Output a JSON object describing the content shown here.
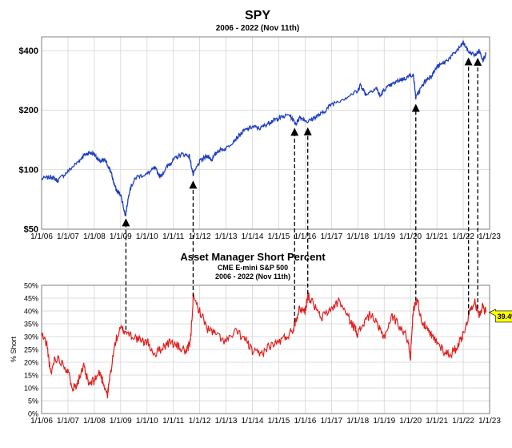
{
  "chart_data": [
    {
      "type": "line",
      "title": "SPY",
      "subtitle": "2006 - 2022 (Nov 11th)",
      "y_scale": "log",
      "ylim": [
        50,
        470
      ],
      "y_ticks": [
        50,
        100,
        200,
        400
      ],
      "y_tick_labels": [
        "$50",
        "$100",
        "$200",
        "$400"
      ],
      "x_tick_labels": [
        "1/1/06",
        "1/1/07",
        "1/1/08",
        "1/1/09",
        "1/1/10",
        "1/1/11",
        "1/1/12",
        "1/1/13",
        "1/1/14",
        "1/1/15",
        "1/1/16",
        "1/1/17",
        "1/1/18",
        "1/1/19",
        "1/1/20",
        "1/1/21",
        "1/1/22",
        "1/1/23"
      ],
      "xlim": [
        2006.0,
        2023.0
      ],
      "grid": true,
      "color": "#1f3fbf",
      "series": [
        {
          "x": [
            2006.0,
            2006.4,
            2006.6,
            2007.0,
            2007.4,
            2007.6,
            2007.8,
            2008.0,
            2008.2,
            2008.4,
            2008.6,
            2008.75,
            2008.85,
            2009.0,
            2009.18,
            2009.35,
            2009.6,
            2010.0,
            2010.3,
            2010.5,
            2010.8,
            2011.0,
            2011.3,
            2011.6,
            2011.75,
            2012.0,
            2012.3,
            2012.45,
            2012.7,
            2013.0,
            2013.4,
            2013.7,
            2014.0,
            2014.3,
            2014.6,
            2014.8,
            2015.0,
            2015.4,
            2015.65,
            2015.8,
            2016.1,
            2016.4,
            2016.7,
            2017.0,
            2017.5,
            2018.0,
            2018.1,
            2018.3,
            2018.7,
            2018.85,
            2019.0,
            2019.3,
            2019.6,
            2019.8,
            2020.1,
            2020.2,
            2020.4,
            2020.6,
            2020.8,
            2021.0,
            2021.3,
            2021.6,
            2021.9,
            2022.0,
            2022.2,
            2022.45,
            2022.6,
            2022.75,
            2022.86
          ],
          "y": [
            90,
            92,
            88,
            98,
            110,
            118,
            122,
            120,
            110,
            112,
            100,
            85,
            78,
            75,
            58,
            80,
            92,
            95,
            102,
            92,
            105,
            112,
            120,
            118,
            94,
            110,
            118,
            112,
            125,
            128,
            145,
            158,
            165,
            162,
            172,
            178,
            182,
            190,
            170,
            185,
            175,
            185,
            195,
            215,
            230,
            250,
            270,
            240,
            260,
            235,
            255,
            270,
            285,
            290,
            305,
            230,
            260,
            285,
            300,
            330,
            350,
            380,
            420,
            440,
            395,
            380,
            400,
            360,
            385
          ]
        }
      ]
    },
    {
      "type": "line",
      "title": "Asset Manager Short Percent",
      "subtitle_lines": [
        "CME E-mini S&P 500",
        "2006 - 2022 (Nov 11th)"
      ],
      "ylabel": "% Short",
      "ylim": [
        0,
        50
      ],
      "y_ticks": [
        0,
        5,
        10,
        15,
        20,
        25,
        30,
        35,
        40,
        45,
        50
      ],
      "y_tick_labels": [
        "0%",
        "5%",
        "10%",
        "15%",
        "20%",
        "25%",
        "30%",
        "35%",
        "40%",
        "45%",
        "50%"
      ],
      "x_tick_labels": [
        "1/1/06",
        "1/1/07",
        "1/1/08",
        "1/1/09",
        "1/1/10",
        "1/1/11",
        "1/1/12",
        "1/1/13",
        "1/1/14",
        "1/1/15",
        "1/1/16",
        "1/1/17",
        "1/1/18",
        "1/1/19",
        "1/1/20",
        "1/1/21",
        "1/1/22",
        "1/1/23"
      ],
      "xlim": [
        2006.0,
        2023.0
      ],
      "grid": true,
      "color": "#e02020",
      "annotation": {
        "label": "39.4%",
        "value": 39.4,
        "x": 2022.86,
        "bg": "#ffff00"
      },
      "series": [
        {
          "x": [
            2006.0,
            2006.2,
            2006.35,
            2006.5,
            2006.8,
            2007.0,
            2007.2,
            2007.35,
            2007.6,
            2007.8,
            2008.0,
            2008.2,
            2008.35,
            2008.5,
            2008.6,
            2008.8,
            2009.0,
            2009.2,
            2009.5,
            2009.8,
            2010.0,
            2010.3,
            2010.6,
            2010.9,
            2011.2,
            2011.5,
            2011.65,
            2011.75,
            2012.0,
            2012.3,
            2012.6,
            2013.0,
            2013.4,
            2013.8,
            2014.0,
            2014.3,
            2014.6,
            2015.0,
            2015.3,
            2015.55,
            2015.65,
            2015.8,
            2016.0,
            2016.1,
            2016.3,
            2016.6,
            2017.0,
            2017.3,
            2017.6,
            2017.9,
            2018.0,
            2018.2,
            2018.5,
            2018.8,
            2019.0,
            2019.3,
            2019.6,
            2019.9,
            2020.0,
            2020.1,
            2020.25,
            2020.4,
            2020.6,
            2020.8,
            2021.0,
            2021.3,
            2021.5,
            2021.7,
            2021.9,
            2022.0,
            2022.2,
            2022.4,
            2022.6,
            2022.75,
            2022.86
          ],
          "y": [
            31,
            27,
            15,
            22,
            20,
            16,
            10,
            12,
            18,
            11,
            13,
            16,
            12,
            7,
            15,
            28,
            33,
            32,
            30,
            28,
            28,
            23,
            26,
            28,
            26,
            24,
            28,
            45,
            40,
            33,
            31,
            28,
            32,
            28,
            24,
            23,
            26,
            28,
            30,
            33,
            37,
            41,
            40,
            46,
            43,
            37,
            41,
            44,
            38,
            33,
            31,
            35,
            39,
            33,
            30,
            38,
            34,
            29,
            22,
            40,
            45,
            37,
            33,
            30,
            28,
            24,
            23,
            25,
            29,
            31,
            38,
            44,
            39,
            42,
            39.4
          ]
        }
      ]
    },
    {
      "type": "annotation",
      "description": "Dashed arrows linking short-percent peaks to SPY moves",
      "arrow_x": [
        2009.2,
        2011.75,
        2015.6,
        2016.1,
        2020.2,
        2022.2,
        2022.55
      ],
      "style": "dashed"
    }
  ]
}
